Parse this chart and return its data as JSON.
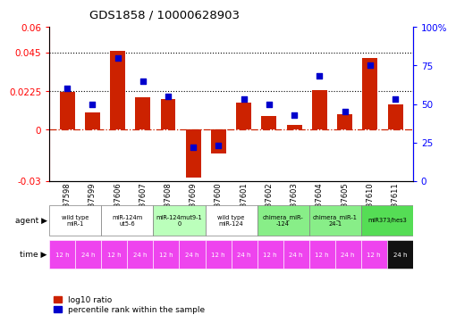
{
  "title": "GDS1858 / 10000628903",
  "samples": [
    "GSM37598",
    "GSM37599",
    "GSM37606",
    "GSM37607",
    "GSM37608",
    "GSM37609",
    "GSM37600",
    "GSM37601",
    "GSM37602",
    "GSM37603",
    "GSM37604",
    "GSM37605",
    "GSM37610",
    "GSM37611"
  ],
  "log10_ratio": [
    0.022,
    0.01,
    0.046,
    0.019,
    0.018,
    -0.028,
    -0.014,
    0.016,
    0.008,
    0.003,
    0.023,
    0.009,
    0.042,
    0.015
  ],
  "percentile": [
    60,
    50,
    80,
    65,
    55,
    22,
    23,
    53,
    50,
    43,
    68,
    45,
    75,
    53
  ],
  "bar_color": "#cc2200",
  "dot_color": "#0000cc",
  "ylim_left": [
    -0.03,
    0.06
  ],
  "ylim_right": [
    0,
    100
  ],
  "yticks_left": [
    -0.03,
    0,
    0.0225,
    0.045,
    0.06
  ],
  "yticks_right": [
    0,
    25,
    50,
    75,
    100
  ],
  "ytick_labels_left": [
    "-0.03",
    "0",
    "0.0225",
    "0.045",
    "0.06"
  ],
  "ytick_labels_right": [
    "0",
    "25",
    "50",
    "75",
    "100%"
  ],
  "hlines": [
    0.0225,
    0.045
  ],
  "agent_groups": [
    {
      "label": "wild type\nmiR-1",
      "cols": [
        0,
        1
      ],
      "color": "#ffffff"
    },
    {
      "label": "miR-124m\nut5-6",
      "cols": [
        2,
        3
      ],
      "color": "#ffffff"
    },
    {
      "label": "miR-124mut9-1\n0",
      "cols": [
        4,
        5
      ],
      "color": "#bbffbb"
    },
    {
      "label": "wild type\nmiR-124",
      "cols": [
        6,
        7
      ],
      "color": "#ffffff"
    },
    {
      "label": "chimera_miR-\n-124",
      "cols": [
        8,
        9
      ],
      "color": "#88ee88"
    },
    {
      "label": "chimera_miR-1\n24-1",
      "cols": [
        10,
        11
      ],
      "color": "#88ee88"
    },
    {
      "label": "miR373/hes3",
      "cols": [
        12,
        13
      ],
      "color": "#55dd55"
    }
  ],
  "time_labels": [
    "12 h",
    "24 h",
    "12 h",
    "24 h",
    "12 h",
    "24 h",
    "12 h",
    "24 h",
    "12 h",
    "24 h",
    "12 h",
    "24 h",
    "12 h",
    "24 h"
  ],
  "time_bg_colors": [
    "#ee44ee",
    "#ee44ee",
    "#ee44ee",
    "#ee44ee",
    "#ee44ee",
    "#ee44ee",
    "#ee44ee",
    "#ee44ee",
    "#ee44ee",
    "#ee44ee",
    "#ee44ee",
    "#ee44ee",
    "#ee44ee",
    "#111111"
  ],
  "sample_bg": "#cccccc",
  "legend_red": "log10 ratio",
  "legend_blue": "percentile rank within the sample"
}
